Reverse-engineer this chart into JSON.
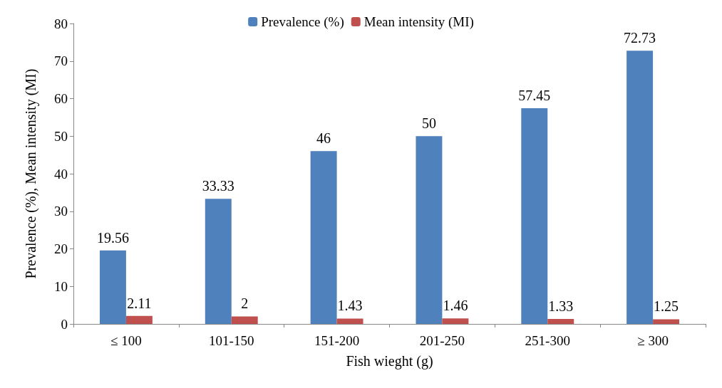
{
  "chart_data": {
    "type": "bar",
    "xlabel": "Fish wieght (g)",
    "ylabel": "Prevalence (%), Mean intensity (MI)",
    "categories": [
      "≤ 100",
      "101-150",
      "151-200",
      "201-250",
      "251-300",
      "≥ 300"
    ],
    "series": [
      {
        "name": "Prevalence (%)",
        "color": "#4f81bd",
        "values": [
          19.56,
          33.33,
          46,
          50,
          57.45,
          72.73
        ]
      },
      {
        "name": "Mean intensity (MI)",
        "color": "#c0504d",
        "values": [
          2.11,
          2,
          1.43,
          1.46,
          1.33,
          1.25
        ]
      }
    ],
    "ylim": [
      0,
      80
    ],
    "yticks": [
      0,
      10,
      20,
      30,
      40,
      50,
      60,
      70,
      80
    ],
    "grid": false,
    "legend": "top",
    "data_labels": true
  }
}
